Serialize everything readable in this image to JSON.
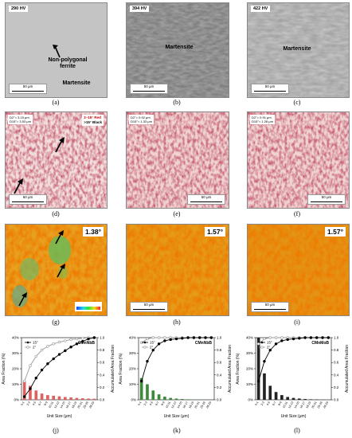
{
  "row1": [
    {
      "label": "(a)",
      "hardness": "290 HV",
      "annotations": [
        "Non-polygonal ferrite",
        "Martensite"
      ],
      "scalebar": "50 μm"
    },
    {
      "label": "(b)",
      "hardness": "394 HV",
      "annotations": [
        "Martensite"
      ],
      "scalebar": "50 μm"
    },
    {
      "label": "(c)",
      "hardness": "422 HV",
      "annotations": [
        "Martensite"
      ],
      "scalebar": "50 μm"
    }
  ],
  "row2": [
    {
      "label": "(d)",
      "stats": [
        "D2°= 3.15 μm",
        "D15°= 3.53 μm"
      ],
      "legend": [
        "2–15° Red",
        ">15° Black"
      ],
      "scalebar": "60 μm"
    },
    {
      "label": "(e)",
      "stats": [
        "D2°= 0.92 μm",
        "D15°= 1.33 μm"
      ],
      "scalebar": "50 μm"
    },
    {
      "label": "(f)",
      "stats": [
        "D2°= 0.91 μm",
        "D15°= 1.28 μm"
      ],
      "scalebar": "50 μm"
    }
  ],
  "row3": [
    {
      "label": "(g)",
      "angle": "1.38°",
      "scalebar": "50 μm"
    },
    {
      "label": "(h)",
      "angle": "1.57°",
      "scalebar": "50 μm"
    },
    {
      "label": "(i)",
      "angle": "1.57°",
      "scalebar": "50 μm"
    }
  ],
  "chart_data": [
    {
      "type": "bar",
      "label": "(j)",
      "steel": "CMnNbB",
      "bar_color": "#e06060",
      "xlabel": "Unit Size (μm)",
      "ylabel": "Area Fraction (%)",
      "y2label": "Accumulated Area Fraction",
      "ylim": [
        0,
        40
      ],
      "y2lim": [
        0,
        1.0
      ],
      "yticks": [
        "0%",
        "10%",
        "20%",
        "30%",
        "40%"
      ],
      "y2ticks": [
        "0.0",
        "0.2",
        "0.4",
        "0.6",
        "0.8",
        "1.0"
      ],
      "xticks": [
        "0-1",
        "2-3",
        "4-5",
        "6-7",
        "8-9",
        "10-11",
        "12-13",
        "14-15",
        "16-17",
        "18-19",
        "20-21",
        "25-26",
        "28-29"
      ],
      "legend": [
        "15°",
        "2°"
      ],
      "bars": [
        12,
        9,
        6,
        4,
        3,
        2.6,
        2.2,
        1.8,
        1.5,
        1.2,
        1.0,
        0.8,
        0.7
      ],
      "cum15": [
        0.05,
        0.18,
        0.35,
        0.48,
        0.58,
        0.66,
        0.73,
        0.79,
        0.85,
        0.9,
        0.94,
        0.98,
        1.0
      ],
      "cum2": [
        0.3,
        0.55,
        0.7,
        0.8,
        0.86,
        0.9,
        0.93,
        0.95,
        0.97,
        0.98,
        0.99,
        1.0,
        1.0
      ]
    },
    {
      "type": "bar",
      "label": "(k)",
      "steel": "CMnNbB",
      "bar_color": "#3a8a3a",
      "xlabel": "Unit Size (μm)",
      "ylabel": "Area Fraction (%)",
      "y2label": "Accumulated Area Fraction",
      "ylim": [
        0,
        40
      ],
      "y2lim": [
        0,
        1.0
      ],
      "yticks": [
        "0%",
        "10%",
        "20%",
        "30%",
        "40%"
      ],
      "y2ticks": [
        "0.0",
        "0.2",
        "0.4",
        "0.6",
        "0.8",
        "1.0"
      ],
      "xticks": [
        "0-1",
        "2-3",
        "4-5",
        "6-7",
        "8-9",
        "10-11",
        "12-13",
        "14-15",
        "16-17",
        "18-19",
        "20-21",
        "25-26",
        "28-29"
      ],
      "legend": [
        "15°",
        "2°"
      ],
      "bars": [
        14,
        10,
        6,
        3.5,
        2,
        1.2,
        0.8,
        0.5,
        0.3,
        0.2,
        0.1,
        0.1,
        0
      ],
      "cum15": [
        0.3,
        0.62,
        0.8,
        0.9,
        0.95,
        0.97,
        0.98,
        0.99,
        1.0,
        1.0,
        1.0,
        1.0,
        1.0
      ],
      "cum2": [
        0.92,
        0.98,
        1.0,
        1.0,
        1.0,
        1.0,
        1.0,
        1.0,
        1.0,
        1.0,
        1.0,
        1.0,
        1.0
      ]
    },
    {
      "type": "bar",
      "label": "(l)",
      "steel": "CMnMoB",
      "bar_color": "#222222",
      "xlabel": "Unit Size (μm)",
      "ylabel": "Area Fraction (%)",
      "y2label": "Accumulated Area Fraction",
      "ylim": [
        0,
        40
      ],
      "y2lim": [
        0,
        1.0
      ],
      "yticks": [
        "0%",
        "10%",
        "20%",
        "30%",
        "40%"
      ],
      "y2ticks": [
        "0.0",
        "0.2",
        "0.4",
        "0.6",
        "0.8",
        "1.0"
      ],
      "xticks": [
        "0-1",
        "2-3",
        "4-5",
        "6-7",
        "8-9",
        "10-11",
        "12-13",
        "14-15",
        "16-17",
        "18-19",
        "20-21",
        "25-26",
        "28-29"
      ],
      "legend": [
        "15°",
        "2°"
      ],
      "bars": [
        40,
        17,
        9,
        5,
        3,
        1.8,
        1.2,
        0.8,
        0.5,
        0.3,
        0.2,
        0.1,
        0
      ],
      "cum15": [
        0.3,
        0.62,
        0.8,
        0.9,
        0.95,
        0.97,
        0.98,
        0.99,
        1.0,
        1.0,
        1.0,
        1.0,
        1.0
      ],
      "cum2": [
        0.9,
        0.98,
        1.0,
        1.0,
        1.0,
        1.0,
        1.0,
        1.0,
        1.0,
        1.0,
        1.0,
        1.0,
        1.0
      ]
    }
  ]
}
